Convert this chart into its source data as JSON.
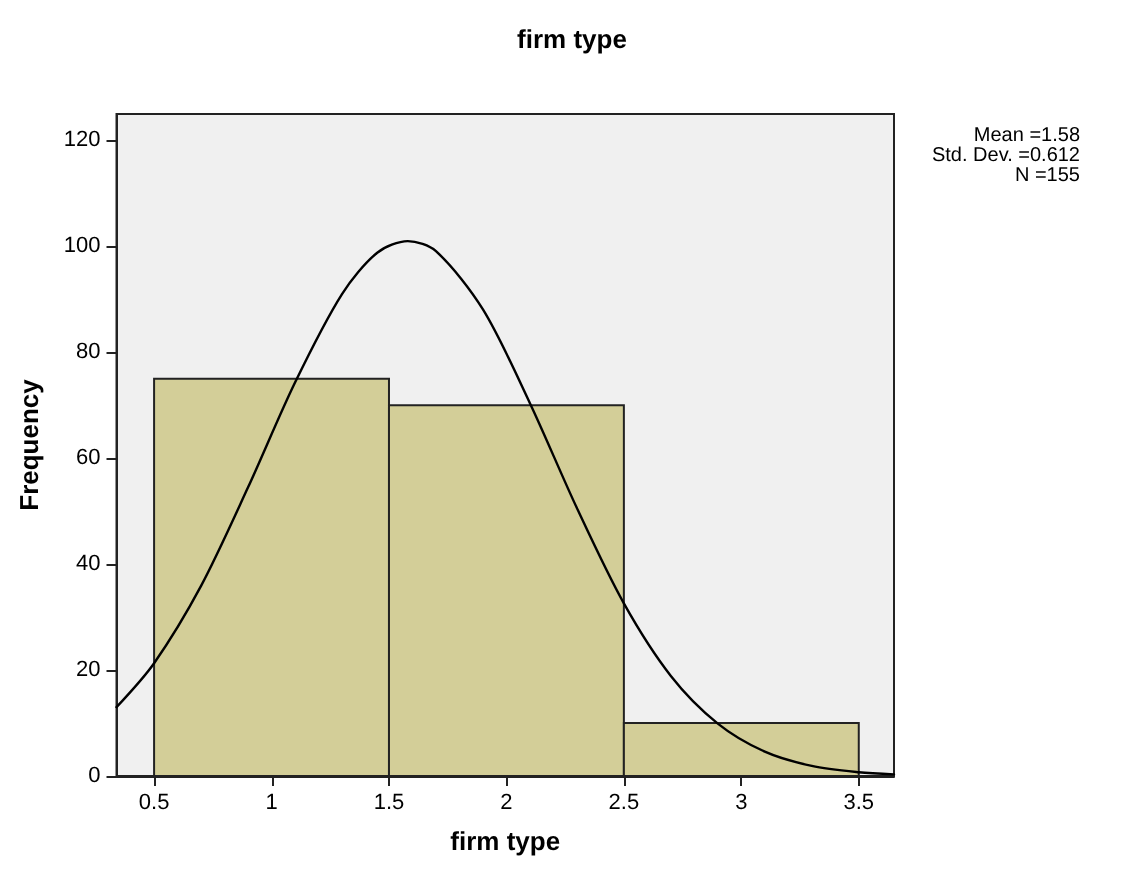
{
  "chart_data": {
    "type": "histogram",
    "title": "firm type",
    "xlabel": "firm type",
    "ylabel": "Frequency",
    "xlim": [
      0.34,
      3.65
    ],
    "ylim": [
      0,
      125
    ],
    "xticks": [
      0.5,
      1,
      1.5,
      2,
      2.5,
      3,
      3.5
    ],
    "yticks": [
      0,
      20,
      40,
      60,
      80,
      100,
      120
    ],
    "grid": false,
    "annotations": [
      "Mean =1.58",
      "Std. Dev. =0.612",
      "N =155"
    ],
    "series": [
      {
        "type": "histogram",
        "color": "#d3ce98",
        "bins": [
          0.5,
          1.5,
          2.5,
          3.5
        ],
        "values": [
          75,
          70,
          10
        ]
      },
      {
        "type": "line",
        "color": "#000000",
        "marker": "none",
        "x": [
          0.34,
          0.5,
          0.7,
          0.9,
          1.1,
          1.3,
          1.45,
          1.58,
          1.7,
          1.9,
          2.1,
          2.3,
          2.5,
          2.7,
          2.9,
          3.1,
          3.3,
          3.5,
          3.65
        ],
        "values": [
          13,
          21.3,
          35.9,
          54.5,
          74.3,
          91,
          98.8,
          101,
          99.1,
          88.1,
          70.4,
          50.6,
          32.6,
          18.9,
          9.9,
          4.6,
          1.9,
          0.7,
          0.3
        ]
      }
    ]
  }
}
